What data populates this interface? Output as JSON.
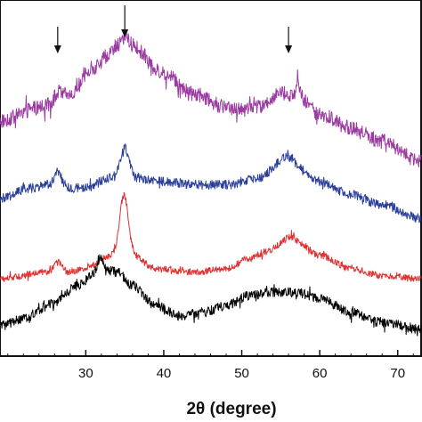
{
  "chart_data": {
    "type": "line",
    "title": "",
    "xlabel": "2θ (degree)",
    "ylabel": "",
    "xlim": [
      19,
      73
    ],
    "x_ticks": [
      30,
      40,
      50,
      60,
      70
    ],
    "x_tick_labels": [
      "30",
      "40",
      "50",
      "60",
      "70"
    ],
    "grid": false,
    "legend": "none",
    "arrows_at_x": [
      26.4,
      35.0,
      56.0
    ],
    "series": [
      {
        "color": "#9b3aa0",
        "noise": 0.022,
        "baseline": [
          [
            19,
            0.62
          ],
          [
            24,
            0.66
          ],
          [
            28,
            0.7
          ],
          [
            31,
            0.78
          ],
          [
            34,
            0.84
          ],
          [
            36,
            0.84
          ],
          [
            40,
            0.76
          ],
          [
            44,
            0.7
          ],
          [
            48,
            0.66
          ],
          [
            52,
            0.66
          ],
          [
            55,
            0.7
          ],
          [
            57,
            0.7
          ],
          [
            60,
            0.64
          ],
          [
            64,
            0.6
          ],
          [
            68,
            0.56
          ],
          [
            73,
            0.5
          ]
        ],
        "peaks": [
          [
            35.1,
            0.03,
            0.5
          ],
          [
            57.2,
            0.06,
            0.15
          ],
          [
            26.4,
            0.02,
            0.4
          ]
        ]
      },
      {
        "color": "#2a3f99",
        "noise": 0.014,
        "baseline": [
          [
            19,
            0.39
          ],
          [
            23,
            0.42
          ],
          [
            25,
            0.43
          ],
          [
            27,
            0.42
          ],
          [
            30,
            0.42
          ],
          [
            33,
            0.45
          ],
          [
            36,
            0.45
          ],
          [
            40,
            0.44
          ],
          [
            44,
            0.43
          ],
          [
            48,
            0.43
          ],
          [
            52,
            0.45
          ],
          [
            55,
            0.49
          ],
          [
            57,
            0.48
          ],
          [
            60,
            0.44
          ],
          [
            64,
            0.4
          ],
          [
            68,
            0.37
          ],
          [
            73,
            0.33
          ]
        ],
        "peaks": [
          [
            35.0,
            0.09,
            0.55
          ],
          [
            26.5,
            0.04,
            0.5
          ],
          [
            56.0,
            0.03,
            0.8
          ]
        ]
      },
      {
        "color": "#e03030",
        "noise": 0.01,
        "baseline": [
          [
            19,
            0.15
          ],
          [
            25,
            0.17
          ],
          [
            28,
            0.17
          ],
          [
            31,
            0.19
          ],
          [
            33,
            0.22
          ],
          [
            36,
            0.22
          ],
          [
            39,
            0.18
          ],
          [
            44,
            0.17
          ],
          [
            48,
            0.18
          ],
          [
            51,
            0.21
          ],
          [
            53,
            0.23
          ],
          [
            55,
            0.25
          ],
          [
            57,
            0.26
          ],
          [
            60,
            0.22
          ],
          [
            64,
            0.18
          ],
          [
            68,
            0.16
          ],
          [
            73,
            0.15
          ]
        ],
        "peaks": [
          [
            34.9,
            0.18,
            0.55
          ],
          [
            26.4,
            0.03,
            0.5
          ],
          [
            56.0,
            0.02,
            0.6
          ]
        ]
      },
      {
        "color": "#000000",
        "noise": 0.014,
        "baseline": [
          [
            19,
            0.01
          ],
          [
            22,
            0.03
          ],
          [
            26,
            0.08
          ],
          [
            29,
            0.13
          ],
          [
            31,
            0.16
          ],
          [
            32.5,
            0.18
          ],
          [
            34,
            0.17
          ],
          [
            36,
            0.13
          ],
          [
            39,
            0.07
          ],
          [
            42,
            0.04
          ],
          [
            45,
            0.05
          ],
          [
            48,
            0.07
          ],
          [
            51,
            0.1
          ],
          [
            54,
            0.11
          ],
          [
            57,
            0.11
          ],
          [
            60,
            0.09
          ],
          [
            64,
            0.05
          ],
          [
            68,
            0.02
          ],
          [
            73,
            0.0
          ]
        ],
        "peaks": [
          [
            31.8,
            0.04,
            0.4
          ]
        ]
      }
    ]
  }
}
